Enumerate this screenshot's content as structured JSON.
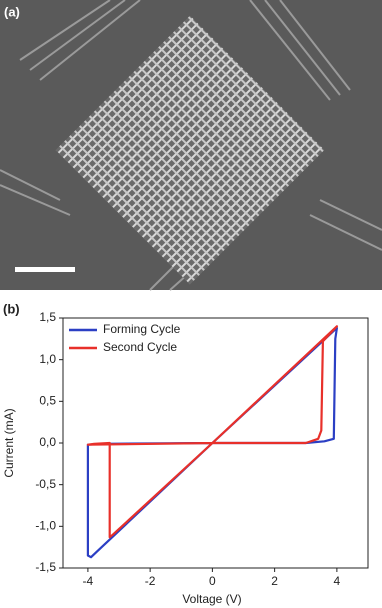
{
  "panel_a": {
    "label": "(a)"
  },
  "panel_b": {
    "label": "(b)"
  },
  "chart_data": {
    "type": "line",
    "x_label": "Voltage (V)",
    "y_label": "Current (mA)",
    "xlim": [
      -4.8,
      5.0
    ],
    "xticks": [
      -4,
      -2,
      0,
      2,
      4
    ],
    "ylim": [
      -1.5,
      1.5
    ],
    "yticks": [
      {
        "value": 1.5,
        "label": "1,5"
      },
      {
        "value": 1.0,
        "label": "1,0"
      },
      {
        "value": 0.5,
        "label": "0,5"
      },
      {
        "value": 0.0,
        "label": "0,0"
      },
      {
        "value": -0.5,
        "label": "-0,5"
      },
      {
        "value": -1.0,
        "label": "-1,0"
      },
      {
        "value": -1.5,
        "label": "-1,5"
      }
    ],
    "legend": "upper left",
    "series": [
      {
        "name": "Forming Cycle",
        "color": "#2b3fc4",
        "x": [
          0,
          3.0,
          3.6,
          3.9,
          3.95,
          4.0,
          0,
          -3.7,
          -3.9,
          -4.0,
          -4.0,
          -3.5,
          0
        ],
        "values": [
          0,
          0.0,
          0.02,
          0.05,
          1.25,
          1.38,
          0,
          -1.3,
          -1.37,
          -1.35,
          -0.02,
          -0.01,
          0
        ]
      },
      {
        "name": "Second Cycle",
        "color": "#e8302a",
        "x": [
          0,
          3.0,
          3.4,
          3.5,
          3.55,
          4.0,
          0,
          -3.2,
          -3.3,
          -3.3,
          -3.8,
          -4.0,
          0
        ],
        "values": [
          0,
          0.0,
          0.05,
          0.15,
          1.22,
          1.4,
          0,
          -1.1,
          -1.13,
          0,
          -0.01,
          -0.02,
          0
        ]
      }
    ]
  }
}
